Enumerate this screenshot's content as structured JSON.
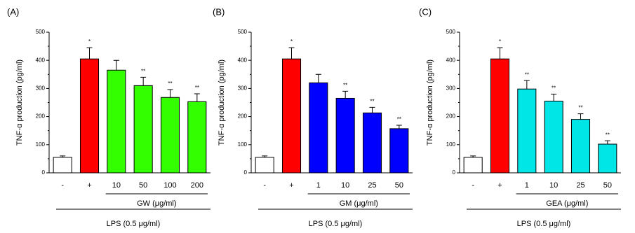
{
  "chart_data": [
    {
      "type": "bar",
      "panel_label": "(A)",
      "ylabel": "TNF-α production (pg/ml)",
      "categories": [
        "-",
        "+",
        "10",
        "50",
        "100",
        "200"
      ],
      "values": [
        55,
        405,
        365,
        310,
        268,
        253
      ],
      "errors": [
        5,
        40,
        35,
        30,
        28,
        28
      ],
      "annotations": [
        null,
        "*",
        null,
        "**",
        "**",
        "**"
      ],
      "colors": [
        "#ffffff",
        "#ff0000",
        "#33ff00",
        "#33ff00",
        "#33ff00",
        "#33ff00"
      ],
      "group_label": "GW (μg/ml)",
      "bracket_label": "LPS (0.5 μg/ml)",
      "ylim": [
        0,
        500
      ],
      "yticks": [
        0,
        100,
        200,
        300,
        400,
        500
      ]
    },
    {
      "type": "bar",
      "panel_label": "(B)",
      "ylabel": "TNF-α production (pg/ml)",
      "categories": [
        "-",
        "+",
        "1",
        "10",
        "25",
        "50"
      ],
      "values": [
        55,
        405,
        320,
        265,
        213,
        157
      ],
      "errors": [
        5,
        40,
        30,
        25,
        20,
        12
      ],
      "annotations": [
        null,
        "*",
        null,
        "**",
        "**",
        "**"
      ],
      "colors": [
        "#ffffff",
        "#ff0000",
        "#0000ff",
        "#0000ff",
        "#0000ff",
        "#0000ff"
      ],
      "group_label": "GM (μg/ml)",
      "bracket_label": "LPS (0.5 μg/ml)",
      "ylim": [
        0,
        500
      ],
      "yticks": [
        0,
        100,
        200,
        300,
        400,
        500
      ]
    },
    {
      "type": "bar",
      "panel_label": "(C)",
      "ylabel": "TNF-α production (pg/ml)",
      "categories": [
        "-",
        "+",
        "1",
        "10",
        "25",
        "50"
      ],
      "values": [
        55,
        405,
        298,
        255,
        190,
        102
      ],
      "errors": [
        5,
        40,
        30,
        25,
        20,
        12
      ],
      "annotations": [
        null,
        "*",
        "**",
        "**",
        "**",
        "**"
      ],
      "colors": [
        "#ffffff",
        "#ff0000",
        "#00e5e5",
        "#00e5e5",
        "#00e5e5",
        "#00e5e5"
      ],
      "group_label": "GEA (μg/ml)",
      "bracket_label": "LPS (0.5 μg/ml)",
      "ylim": [
        0,
        500
      ],
      "yticks": [
        0,
        100,
        200,
        300,
        400,
        500
      ]
    }
  ]
}
